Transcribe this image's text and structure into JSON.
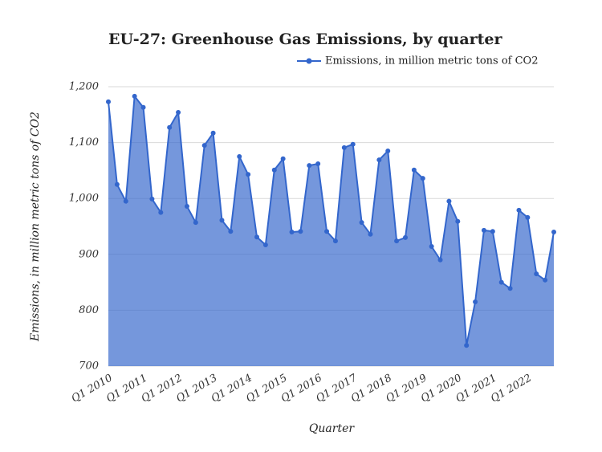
{
  "chart_data": {
    "type": "area",
    "title": "EU-27: Greenhouse Gas Emissions, by quarter",
    "x_label": "Quarter",
    "y_label": "Emissions, in million metric tons of CO2",
    "categories": [
      "Q1 2010",
      null,
      null,
      null,
      "Q1 2011",
      null,
      null,
      null,
      "Q1 2012",
      null,
      null,
      null,
      "Q1 2013",
      null,
      null,
      null,
      "Q1 2014",
      null,
      null,
      null,
      "Q1 2015",
      null,
      null,
      null,
      "Q1 2016",
      null,
      null,
      null,
      "Q1 2017",
      null,
      null,
      null,
      "Q1 2018",
      null,
      null,
      null,
      "Q1 2019",
      null,
      null,
      null,
      "Q1 2020",
      null,
      null,
      null,
      "Q1 2021",
      null,
      null,
      null,
      "Q1 2022",
      null,
      null,
      null
    ],
    "series": [
      {
        "name": "Emissions, in million metric tons of CO2",
        "color": "#3366cc",
        "values": [
          1173,
          1025,
          995,
          1183,
          1163,
          999,
          975,
          1127,
          1154,
          986,
          957,
          1095,
          1117,
          961,
          941,
          1075,
          1043,
          931,
          917,
          1051,
          1071,
          940,
          941,
          1059,
          1062,
          941,
          924,
          1091,
          1097,
          957,
          936,
          1069,
          1085,
          924,
          930,
          1051,
          1036,
          914,
          890,
          995,
          959,
          737,
          815,
          943,
          941,
          850,
          839,
          979,
          966,
          865,
          854,
          940
        ]
      }
    ],
    "ylim": [
      700,
      1200
    ],
    "yticks": [
      700,
      800,
      900,
      {
        "value": 1000,
        "label": "1,000"
      },
      {
        "value": 1100,
        "label": "1,100"
      },
      {
        "value": 1200,
        "label": "1,200"
      }
    ],
    "grid": true,
    "legend": "top-right"
  }
}
